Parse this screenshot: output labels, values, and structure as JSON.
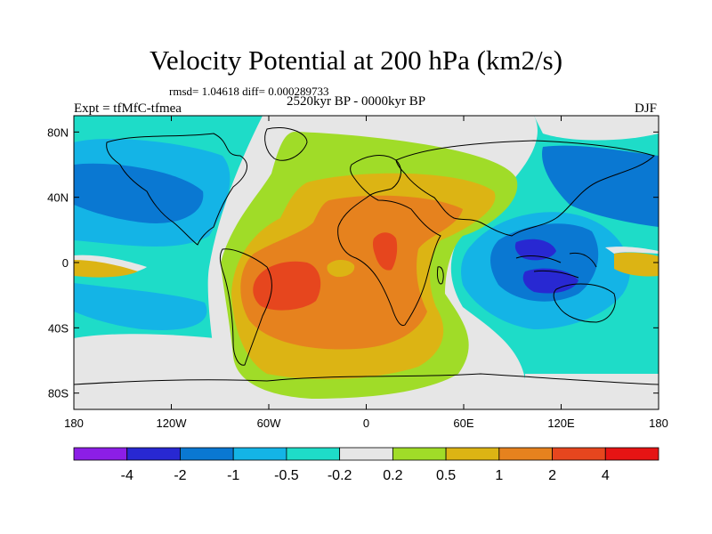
{
  "title": "Velocity Potential at 200 hPa (km2/s)",
  "stats": "rmsd= 1.04618 diff= 0.000289733",
  "period": "2520kyr BP - 0000kyr BP",
  "left_label": "Expt = tfMfC-tfmea",
  "right_label": "DJF",
  "axes": {
    "lon_ticks": [
      {
        "lon": -180,
        "label": "180"
      },
      {
        "lon": -120,
        "label": "120W"
      },
      {
        "lon": -60,
        "label": "60W"
      },
      {
        "lon": 0,
        "label": "0"
      },
      {
        "lon": 60,
        "label": "60E"
      },
      {
        "lon": 120,
        "label": "120E"
      },
      {
        "lon": 180,
        "label": "180"
      }
    ],
    "lat_ticks": [
      {
        "lat": 80,
        "label": "80N"
      },
      {
        "lat": 40,
        "label": "40N"
      },
      {
        "lat": 0,
        "label": "0"
      },
      {
        "lat": -40,
        "label": "40S"
      },
      {
        "lat": -80,
        "label": "80S"
      }
    ],
    "lon_range": [
      -180,
      180
    ],
    "lat_range": [
      -90,
      90
    ]
  },
  "colorbar": {
    "colors": [
      "#8c1ee6",
      "#2828d2",
      "#0a78d2",
      "#14b4e6",
      "#1edcc8",
      "#e6e6e6",
      "#a0dc28",
      "#dcb414",
      "#e6821e",
      "#e6461e",
      "#e61414"
    ],
    "labels": [
      "-4",
      "-2",
      "-1",
      "-0.5",
      "-0.2",
      "0.2",
      "0.5",
      "1",
      "2",
      "4"
    ]
  }
}
